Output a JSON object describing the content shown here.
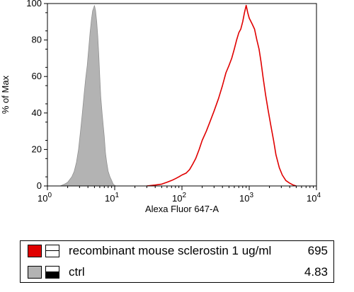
{
  "chart_data": {
    "type": "area",
    "xlabel": "Alexa Fluor 647-A",
    "ylabel": "% of Max",
    "xscale": "log",
    "xlim": [
      1,
      10000
    ],
    "ylim": [
      0,
      100
    ],
    "x_ticks": [
      {
        "base": "10",
        "exp": "0"
      },
      {
        "base": "10",
        "exp": "1"
      },
      {
        "base": "10",
        "exp": "2"
      },
      {
        "base": "10",
        "exp": "3"
      },
      {
        "base": "10",
        "exp": "4"
      }
    ],
    "y_ticks": [
      "0",
      "20",
      "40",
      "60",
      "80",
      "100"
    ],
    "grid": false,
    "legend_position": "bottom",
    "series": [
      {
        "name": "ctrl",
        "value_label": "4.83",
        "color": "#b3b3b3",
        "edge_color": "#909090",
        "filled": true,
        "points": [
          [
            1.55,
            0
          ],
          [
            1.8,
            1
          ],
          [
            2.0,
            2
          ],
          [
            2.3,
            5
          ],
          [
            2.5,
            8
          ],
          [
            2.7,
            13
          ],
          [
            2.9,
            20
          ],
          [
            3.1,
            30
          ],
          [
            3.3,
            40
          ],
          [
            3.5,
            50
          ],
          [
            3.7,
            59
          ],
          [
            3.9,
            66
          ],
          [
            4.1,
            75
          ],
          [
            4.3,
            84
          ],
          [
            4.5,
            91
          ],
          [
            4.7,
            96
          ],
          [
            4.9,
            98
          ],
          [
            5.0,
            99
          ],
          [
            5.2,
            96
          ],
          [
            5.4,
            90
          ],
          [
            5.6,
            82
          ],
          [
            5.8,
            72
          ],
          [
            6.0,
            60
          ],
          [
            6.2,
            49
          ],
          [
            6.5,
            40
          ],
          [
            6.8,
            32
          ],
          [
            7.0,
            27
          ],
          [
            7.3,
            18
          ],
          [
            7.6,
            13
          ],
          [
            8.0,
            8
          ],
          [
            8.5,
            5
          ],
          [
            9.0,
            3
          ],
          [
            9.5,
            1
          ],
          [
            10.0,
            0.3
          ],
          [
            10.5,
            0
          ]
        ]
      },
      {
        "name": "recombinant mouse sclerostin 1 ug/ml",
        "value_label": "695",
        "color": "#e00000",
        "filled": false,
        "points": [
          [
            30,
            0
          ],
          [
            40,
            0.5
          ],
          [
            50,
            1
          ],
          [
            60,
            2
          ],
          [
            70,
            3
          ],
          [
            80,
            4
          ],
          [
            90,
            5
          ],
          [
            100,
            6
          ],
          [
            115,
            7
          ],
          [
            130,
            9
          ],
          [
            145,
            12
          ],
          [
            160,
            15
          ],
          [
            180,
            20
          ],
          [
            200,
            25
          ],
          [
            230,
            30
          ],
          [
            260,
            35
          ],
          [
            300,
            41
          ],
          [
            350,
            48
          ],
          [
            400,
            55
          ],
          [
            450,
            62
          ],
          [
            500,
            66
          ],
          [
            550,
            70
          ],
          [
            600,
            75
          ],
          [
            650,
            80
          ],
          [
            700,
            84
          ],
          [
            750,
            86
          ],
          [
            800,
            90
          ],
          [
            850,
            95
          ],
          [
            900,
            99
          ],
          [
            950,
            95
          ],
          [
            1000,
            92
          ],
          [
            1100,
            89
          ],
          [
            1200,
            86
          ],
          [
            1300,
            80
          ],
          [
            1400,
            75
          ],
          [
            1500,
            68
          ],
          [
            1600,
            60
          ],
          [
            1750,
            50
          ],
          [
            1900,
            42
          ],
          [
            2100,
            33
          ],
          [
            2300,
            25
          ],
          [
            2500,
            17
          ],
          [
            2800,
            10
          ],
          [
            3100,
            6
          ],
          [
            3500,
            3
          ],
          [
            4000,
            1.5
          ],
          [
            4500,
            0.5
          ],
          [
            5000,
            0
          ]
        ]
      }
    ]
  }
}
